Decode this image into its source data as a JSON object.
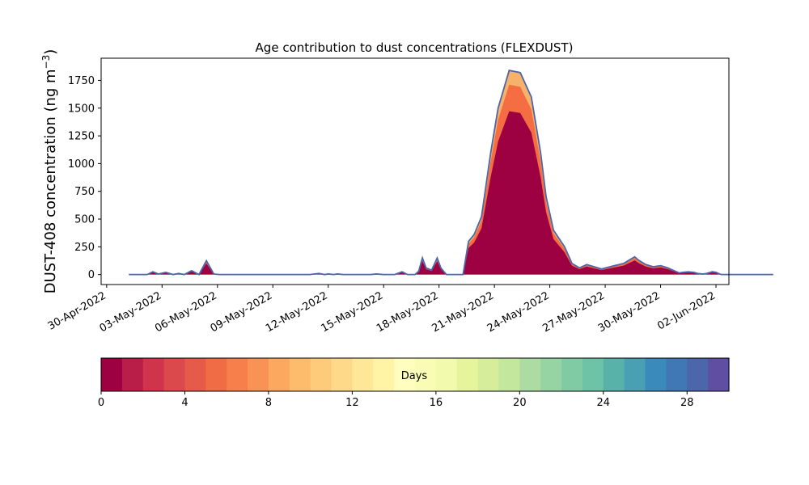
{
  "chart_data": {
    "type": "area",
    "title": "Age contribution to dust concentrations (FLEXDUST)",
    "ylabel_main": "DUST-408 concentration (ng m",
    "ylabel_sup": "−3",
    "ylabel_close": ")",
    "xlabel": "",
    "yticks": [
      "0",
      "250",
      "500",
      "750",
      "1000",
      "1250",
      "1500",
      "1750"
    ],
    "ylim": [
      -90,
      1950
    ],
    "x_dates": [
      "30-Apr-2022",
      "03-May-2022",
      "06-May-2022",
      "09-May-2022",
      "12-May-2022",
      "15-May-2022",
      "18-May-2022",
      "21-May-2022",
      "24-May-2022",
      "27-May-2022",
      "30-May-2022",
      "02-Jun-2022"
    ],
    "x_tick_day": [
      0,
      3,
      6,
      9,
      12,
      15,
      18,
      21,
      24,
      27,
      30,
      33
    ],
    "xlim_day": [
      -0.3,
      33.7
    ],
    "colorbar": {
      "label": "Days",
      "ticks": [
        "0",
        "4",
        "8",
        "12",
        "16",
        "20",
        "24",
        "28"
      ],
      "tick_values": [
        0,
        4,
        8,
        12,
        16,
        20,
        24,
        28
      ],
      "range": [
        0,
        30
      ],
      "colors": [
        "#9e0142",
        "#b91e48",
        "#d0344d",
        "#dc494c",
        "#e55a49",
        "#f06c45",
        "#f67f4b",
        "#f99355",
        "#fca85e",
        "#fdbb6c",
        "#fdcb7a",
        "#fed989",
        "#fee797",
        "#fff3a6",
        "#fffebe",
        "#f9fcb5",
        "#f2faad",
        "#e6f59b",
        "#d6ee9b",
        "#c4e79e",
        "#addca2",
        "#97d4a4",
        "#80cba4",
        "#6cc3a5",
        "#58b2aa",
        "#4aa0b3",
        "#3a8bbb",
        "#3f78b4",
        "#4c66ac",
        "#5e4fa2"
      ]
    },
    "series_total": {
      "x_day": [
        1.2,
        1.8,
        2.2,
        2.5,
        2.8,
        3.2,
        3.6,
        3.9,
        4.2,
        4.6,
        5.0,
        5.4,
        5.8,
        6.1,
        6.4,
        7.0,
        8.0,
        9.0,
        9.6,
        9.8,
        9.9,
        10.0,
        10.3,
        10.6,
        11.0,
        11.5,
        11.8,
        12.0,
        12.3,
        12.5,
        12.8,
        13.2,
        13.6,
        14.0,
        14.3,
        14.6,
        15.0,
        15.3,
        15.6,
        16.0,
        16.3,
        16.7,
        16.9,
        17.1,
        17.3,
        17.6,
        17.9,
        18.1,
        18.4,
        18.7,
        19.0,
        19.3,
        19.6,
        19.9,
        20.3,
        20.8,
        21.2,
        21.8,
        22.4,
        23.0,
        23.5,
        23.8,
        24.2,
        24.8,
        25.2,
        25.6,
        26.0,
        26.4,
        26.8,
        27.5,
        28.0,
        28.4,
        28.6,
        28.8,
        29.2,
        29.6,
        30.0,
        30.4,
        30.8,
        31.0,
        31.2,
        31.5,
        31.8,
        32.0,
        32.3,
        32.5,
        32.8,
        33.0,
        33.2,
        33.3,
        33.6,
        34.0,
        34.6,
        35.2,
        36.1
      ],
      "y": [
        0,
        0,
        0,
        25,
        5,
        20,
        0,
        10,
        0,
        35,
        0,
        125,
        5,
        0,
        0,
        0,
        0,
        0,
        0,
        0,
        0,
        0,
        0,
        0,
        0,
        10,
        0,
        5,
        0,
        5,
        0,
        0,
        0,
        0,
        0,
        5,
        0,
        0,
        0,
        25,
        0,
        0,
        30,
        150,
        60,
        40,
        150,
        60,
        0,
        0,
        0,
        0,
        300,
        360,
        520,
        1100,
        1500,
        1840,
        1820,
        1600,
        1100,
        700,
        400,
        250,
        100,
        60,
        90,
        70,
        50,
        80,
        100,
        140,
        160,
        130,
        90,
        70,
        80,
        60,
        30,
        15,
        20,
        25,
        20,
        10,
        5,
        10,
        25,
        20,
        5,
        0,
        0,
        0,
        0,
        0,
        0
      ]
    }
  }
}
